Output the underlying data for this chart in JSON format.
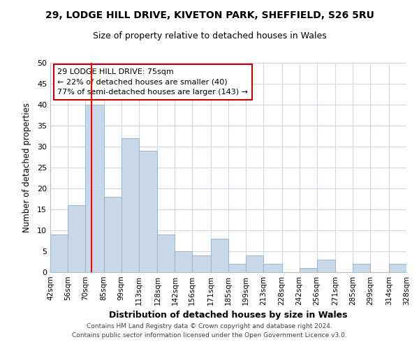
{
  "title": "29, LODGE HILL DRIVE, KIVETON PARK, SHEFFIELD, S26 5RU",
  "subtitle": "Size of property relative to detached houses in Wales",
  "xlabel": "Distribution of detached houses by size in Wales",
  "ylabel": "Number of detached properties",
  "bin_labels": [
    "42sqm",
    "56sqm",
    "70sqm",
    "85sqm",
    "99sqm",
    "113sqm",
    "128sqm",
    "142sqm",
    "156sqm",
    "171sqm",
    "185sqm",
    "199sqm",
    "213sqm",
    "228sqm",
    "242sqm",
    "256sqm",
    "271sqm",
    "285sqm",
    "299sqm",
    "314sqm",
    "328sqm"
  ],
  "bin_edges": [
    42,
    56,
    70,
    85,
    99,
    113,
    128,
    142,
    156,
    171,
    185,
    199,
    213,
    228,
    242,
    256,
    271,
    285,
    299,
    314,
    328
  ],
  "bar_heights": [
    9,
    16,
    40,
    18,
    32,
    29,
    9,
    5,
    4,
    8,
    2,
    4,
    2,
    0,
    1,
    3,
    0,
    2,
    0,
    2
  ],
  "bar_color": "#c8d8e8",
  "bar_edgecolor": "#a0b8cc",
  "red_line_x": 75,
  "ylim": [
    0,
    50
  ],
  "yticks": [
    0,
    5,
    10,
    15,
    20,
    25,
    30,
    35,
    40,
    45,
    50
  ],
  "annotation_title": "29 LODGE HILL DRIVE: 75sqm",
  "annotation_line1": "← 22% of detached houses are smaller (40)",
  "annotation_line2": "77% of semi-detached houses are larger (143) →",
  "annotation_box_color": "#ffffff",
  "annotation_box_edgecolor": "#cc0000",
  "footer_line1": "Contains HM Land Registry data © Crown copyright and database right 2024.",
  "footer_line2": "Contains public sector information licensed under the Open Government Licence v3.0.",
  "background_color": "#ffffff",
  "grid_color": "#d0d8e8"
}
